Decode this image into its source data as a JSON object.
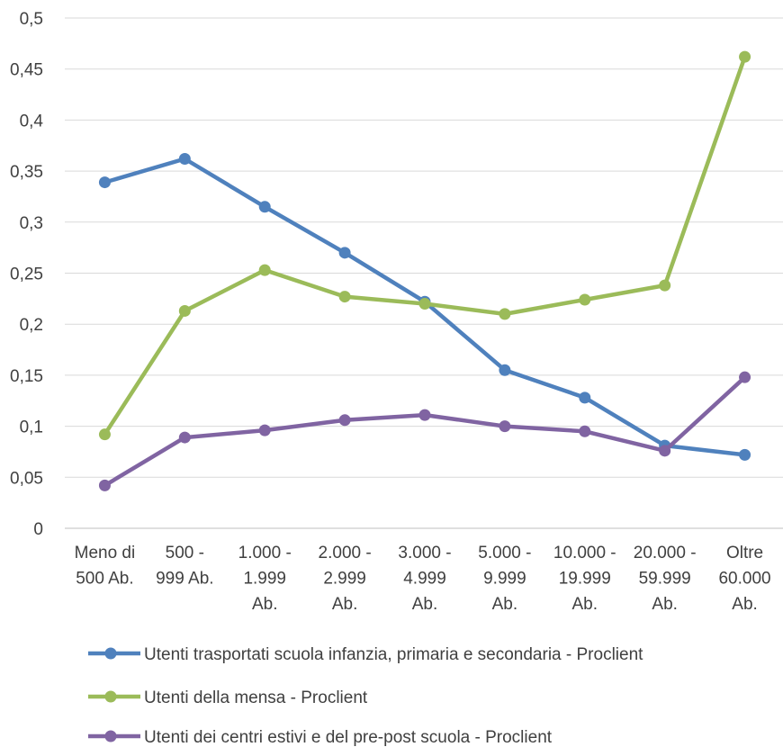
{
  "chart_data": {
    "type": "line",
    "title": "",
    "xlabel": "",
    "ylabel": "",
    "ylim": [
      0,
      0.5
    ],
    "yticks": [
      {
        "value": 0,
        "label": "0"
      },
      {
        "value": 0.05,
        "label": "0,05"
      },
      {
        "value": 0.1,
        "label": "0,1"
      },
      {
        "value": 0.15,
        "label": "0,15"
      },
      {
        "value": 0.2,
        "label": "0,2"
      },
      {
        "value": 0.25,
        "label": "0,25"
      },
      {
        "value": 0.3,
        "label": "0,3"
      },
      {
        "value": 0.35,
        "label": "0,35"
      },
      {
        "value": 0.4,
        "label": "0,4"
      },
      {
        "value": 0.45,
        "label": "0,45"
      },
      {
        "value": 0.5,
        "label": "0,5"
      }
    ],
    "grid": "horizontal",
    "legend_position": "bottom",
    "categories": [
      [
        "Meno di",
        "500 Ab."
      ],
      [
        "500 -",
        "999 Ab."
      ],
      [
        "1.000 -",
        "1.999",
        "Ab."
      ],
      [
        "2.000 -",
        "2.999",
        "Ab."
      ],
      [
        "3.000 -",
        "4.999",
        "Ab."
      ],
      [
        "5.000 -",
        "9.999",
        "Ab."
      ],
      [
        "10.000 -",
        "19.999",
        "Ab."
      ],
      [
        "20.000 -",
        "59.999",
        "Ab."
      ],
      [
        "Oltre",
        "60.000",
        "Ab."
      ]
    ],
    "series": [
      {
        "name": "Utenti trasportati scuola infanzia, primaria e secondaria - Proclient",
        "color": "#4f81bd",
        "values": [
          0.339,
          0.362,
          0.315,
          0.27,
          0.222,
          0.155,
          0.128,
          0.081,
          0.072
        ]
      },
      {
        "name": "Utenti della mensa - Proclient",
        "color": "#9bbb59",
        "values": [
          0.092,
          0.213,
          0.253,
          0.227,
          0.22,
          0.21,
          0.224,
          0.238,
          0.462
        ]
      },
      {
        "name": "Utenti dei centri estivi e del pre-post scuola - Proclient",
        "color": "#8064a2",
        "values": [
          0.042,
          0.089,
          0.096,
          0.106,
          0.111,
          0.1,
          0.095,
          0.076,
          0.148
        ]
      }
    ]
  }
}
